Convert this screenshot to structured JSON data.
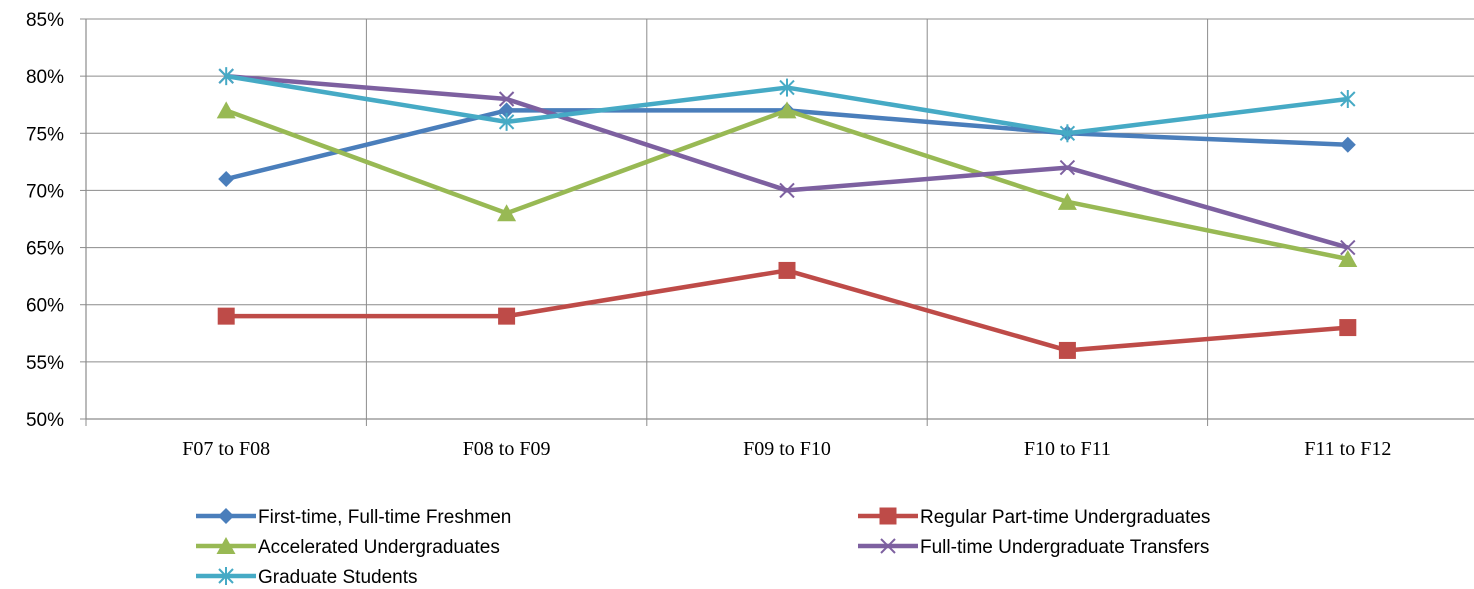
{
  "chart_data": {
    "type": "line",
    "title": "",
    "xlabel": "",
    "ylabel": "",
    "categories": [
      "F07 to F08",
      "F08 to F09",
      "F09 to F10",
      "F10 to F11",
      "F11 to F12"
    ],
    "ylim": [
      50,
      85
    ],
    "yticks": [
      "50%",
      "55%",
      "60%",
      "65%",
      "70%",
      "75%",
      "80%",
      "85%"
    ],
    "grid": true,
    "legend_position": "bottom",
    "series": [
      {
        "name": "First-time, Full-time Freshmen",
        "values": [
          71,
          77,
          77,
          75,
          74
        ],
        "color": "#4a7ebb",
        "marker": "diamond"
      },
      {
        "name": "Regular Part-time Undergraduates",
        "values": [
          59,
          59,
          63,
          56,
          58
        ],
        "color": "#be4b48",
        "marker": "square"
      },
      {
        "name": "Accelerated Undergraduates",
        "values": [
          77,
          68,
          77,
          69,
          64
        ],
        "color": "#98b954",
        "marker": "triangle"
      },
      {
        "name": "Full-time Undergraduate Transfers",
        "values": [
          80,
          78,
          70,
          72,
          65
        ],
        "color": "#7d60a0",
        "marker": "x"
      },
      {
        "name": "Graduate Students",
        "values": [
          80,
          76,
          79,
          75,
          78
        ],
        "color": "#46aac5",
        "marker": "star"
      }
    ]
  }
}
